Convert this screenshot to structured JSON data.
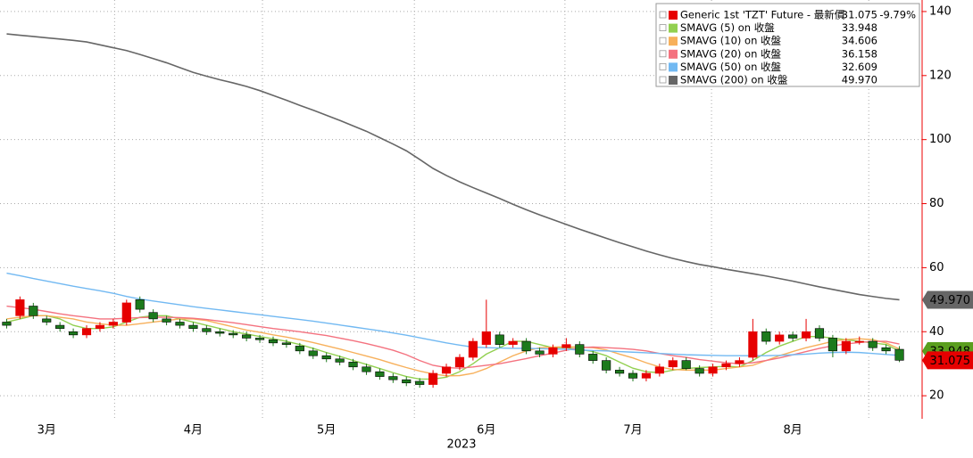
{
  "chart_data": {
    "type": "candlestick",
    "categories": [
      null,
      null,
      null,
      "3月",
      null,
      null,
      null,
      null,
      null,
      null,
      null,
      null,
      null,
      null,
      "4月",
      null,
      null,
      null,
      null,
      null,
      null,
      null,
      null,
      null,
      "5月",
      null,
      null,
      null,
      null,
      null,
      null,
      null,
      null,
      null,
      null,
      null,
      "6月",
      null,
      null,
      null,
      null,
      null,
      null,
      null,
      null,
      null,
      null,
      "7月",
      null,
      null,
      null,
      null,
      null,
      null,
      null,
      null,
      null,
      null,
      null,
      "8月",
      null,
      null,
      null,
      null,
      null,
      null,
      null,
      null
    ],
    "annotation": "2023",
    "xticks": [
      8.1,
      19.2,
      30.6,
      41.9,
      52.9,
      64.7
    ],
    "ylim": [
      12.8,
      143.6
    ],
    "yticks": [
      20,
      40,
      60,
      80,
      100,
      120,
      140
    ],
    "grid": true,
    "series": [
      {
        "name": "Generic 1st 'TZT' Future - 最新價",
        "color": "#e60000",
        "up_color": "#e60000",
        "down_color": "#1c7a1c",
        "last_label": "31.075",
        "change_label": "-9.79%",
        "open": [
          43,
          45,
          48,
          44,
          42,
          40,
          39,
          41,
          42,
          43,
          50,
          46,
          44,
          43,
          42,
          41,
          40,
          39.5,
          39,
          38,
          37.5,
          36.5,
          35.5,
          34,
          32.5,
          31.5,
          30.5,
          29,
          27.5,
          26,
          25,
          24.5,
          23.5,
          27,
          29,
          32,
          36,
          39,
          36,
          37,
          34,
          33,
          35,
          36,
          33,
          31,
          28,
          27,
          25.5,
          27,
          29,
          31,
          28.5,
          27,
          29,
          30,
          32,
          40,
          37,
          39,
          38,
          41,
          38,
          34,
          37,
          37,
          35,
          34.5
        ],
        "high": [
          44,
          51,
          49,
          45,
          43,
          41,
          42,
          43,
          44,
          50,
          51,
          47,
          45,
          44,
          43,
          42,
          41,
          40.5,
          40,
          39,
          38.5,
          37.5,
          36.5,
          35,
          33.5,
          32.5,
          31.5,
          30,
          28.5,
          27,
          26,
          25.5,
          28,
          30,
          33,
          38,
          50,
          40,
          38,
          38,
          35,
          36,
          38,
          37,
          34,
          32,
          29,
          28,
          28,
          30,
          32,
          32,
          29.5,
          30,
          31,
          32,
          44,
          41,
          40,
          40,
          44,
          42,
          39,
          38,
          38.5,
          38,
          36,
          35.5
        ],
        "low": [
          41,
          44,
          44,
          42,
          40,
          38,
          38,
          40,
          41,
          42,
          46,
          43,
          42,
          41,
          40,
          39,
          38.5,
          38,
          37,
          36.5,
          35.5,
          35,
          33,
          31.5,
          30.5,
          29.5,
          28,
          26.5,
          25,
          24,
          23,
          22.5,
          22.5,
          26,
          28,
          31,
          35,
          35,
          35,
          33,
          32,
          32,
          34,
          32,
          30,
          27,
          26,
          24.5,
          24.5,
          26,
          28,
          28,
          26,
          26,
          28,
          29,
          31,
          36,
          36,
          37,
          37,
          37,
          32,
          33,
          36,
          34,
          33,
          30.5
        ],
        "close": [
          42,
          50,
          45,
          43,
          41,
          39,
          41,
          42,
          43,
          49,
          47,
          44,
          43,
          42,
          41,
          40,
          39.5,
          39,
          38,
          37.5,
          36.5,
          36,
          34,
          32.5,
          31.5,
          30.5,
          29,
          27.5,
          26,
          25,
          24,
          23.5,
          27,
          29,
          32,
          37,
          40,
          36,
          37,
          34,
          33,
          35,
          36,
          33,
          31,
          28,
          27,
          25.5,
          27,
          29,
          31,
          28.5,
          27,
          29,
          30,
          31,
          40,
          37,
          39,
          38,
          40,
          38,
          34,
          37,
          37,
          35,
          34,
          31.075
        ]
      },
      {
        "name": "SMAVG (5)  on 收盤",
        "color": "#92d050",
        "last_label": "33.948",
        "values": [
          43,
          44,
          45,
          45,
          44,
          42,
          41,
          41,
          41.5,
          43,
          44.5,
          45,
          45,
          44,
          43,
          42,
          41,
          40,
          39.3,
          38.5,
          37.8,
          37,
          36,
          34.8,
          33.5,
          32.3,
          31,
          29.8,
          28.5,
          27.2,
          26,
          25.2,
          25.2,
          25.8,
          27.5,
          30,
          33,
          35,
          37,
          37,
          36,
          35,
          35,
          34.5,
          33.8,
          32.5,
          30.5,
          28.6,
          27.5,
          27.2,
          28,
          28.5,
          28.8,
          29,
          29.2,
          29,
          31,
          33.5,
          35.5,
          37,
          38.5,
          38.5,
          38,
          37.5,
          37,
          36.5,
          36,
          33.948
        ]
      },
      {
        "name": "SMAVG (10)  on 收盤",
        "color": "#f7b05b",
        "last_label": "34.606",
        "values": [
          44,
          44.5,
          45,
          45,
          44.5,
          44,
          43,
          42.5,
          42,
          42,
          42.5,
          43,
          43.5,
          44,
          44,
          43.5,
          42.5,
          41.5,
          40.5,
          39.8,
          39,
          38.3,
          37.5,
          36.6,
          35.6,
          34.6,
          33.5,
          32.4,
          31.3,
          30,
          28.8,
          27.7,
          26.8,
          26.2,
          26.3,
          27,
          28.5,
          30.5,
          32.5,
          34,
          35,
          35.2,
          35.3,
          35.2,
          35,
          34.3,
          33,
          31.8,
          30.3,
          29,
          28.2,
          28,
          28,
          28,
          28.5,
          29,
          29.5,
          31,
          32.5,
          33.8,
          35,
          36,
          37,
          37.6,
          37.8,
          37.5,
          36.5,
          34.606
        ]
      },
      {
        "name": "SMAVG (20)  on 收盤",
        "color": "#f4727f",
        "last_label": "36.158",
        "values": [
          48,
          47.5,
          47,
          46.3,
          45.6,
          45,
          44.5,
          44,
          44,
          44.2,
          44.4,
          44.5,
          44.5,
          44.4,
          44.2,
          43.8,
          43.3,
          42.8,
          42.2,
          41.6,
          41,
          40.5,
          40,
          39.4,
          38.8,
          38,
          37.2,
          36.3,
          35.3,
          34.2,
          32.8,
          31,
          29.5,
          28.8,
          28.6,
          29,
          29.5,
          30,
          30.8,
          31.6,
          32.5,
          33.3,
          34.2,
          35,
          35.2,
          35,
          34.8,
          34.5,
          34,
          33.2,
          32.5,
          32,
          31.3,
          30.8,
          30.3,
          30,
          30.3,
          31,
          31.8,
          32.8,
          33.8,
          34.8,
          35.6,
          36.2,
          36.6,
          37,
          37,
          36.158
        ]
      },
      {
        "name": "SMAVG (50)  on 收盤",
        "color": "#72b9f2",
        "last_label": "32.609",
        "values": [
          58.3,
          57.5,
          56.6,
          55.8,
          55,
          54.2,
          53.5,
          52.8,
          52,
          51,
          50.2,
          49.6,
          49,
          48.4,
          47.8,
          47.3,
          46.8,
          46.3,
          45.8,
          45.3,
          44.8,
          44.3,
          43.8,
          43.3,
          42.7,
          42.1,
          41.5,
          40.9,
          40.3,
          39.6,
          38.9,
          38.1,
          37.3,
          36.5,
          35.8,
          35.2,
          35,
          34.9,
          34.8,
          34.8,
          34.7,
          34.6,
          34.5,
          34.3,
          34.1,
          34,
          33.8,
          33.6,
          33.4,
          33.2,
          33,
          32.8,
          32.7,
          32.6,
          32.5,
          32.5,
          32.5,
          32.5,
          32.6,
          32.8,
          33,
          33.3,
          33.5,
          33.6,
          33.5,
          33.2,
          32.9,
          32.609
        ]
      },
      {
        "name": "SMAVG (200)  on 收盤",
        "color": "#666666",
        "last_label": "49.970",
        "values": [
          133,
          132.6,
          132.2,
          131.8,
          131.4,
          131,
          130.5,
          129.6,
          128.7,
          127.8,
          126.6,
          125.3,
          124,
          122.5,
          121,
          119.8,
          118.7,
          117.7,
          116.6,
          115.3,
          113.8,
          112.3,
          110.7,
          109.2,
          107.6,
          106,
          104.3,
          102.6,
          100.6,
          98.6,
          96.5,
          93.8,
          91,
          88.8,
          86.8,
          85,
          83.3,
          81.6,
          79.8,
          78.1,
          76.5,
          75,
          73.5,
          72,
          70.6,
          69.2,
          67.8,
          66.5,
          65.2,
          64,
          62.9,
          61.9,
          61,
          60.3,
          59.5,
          58.8,
          58.1,
          57.4,
          56.6,
          55.8,
          54.9,
          54,
          53.2,
          52.4,
          51.6,
          51,
          50.4,
          49.97
        ]
      }
    ]
  }
}
